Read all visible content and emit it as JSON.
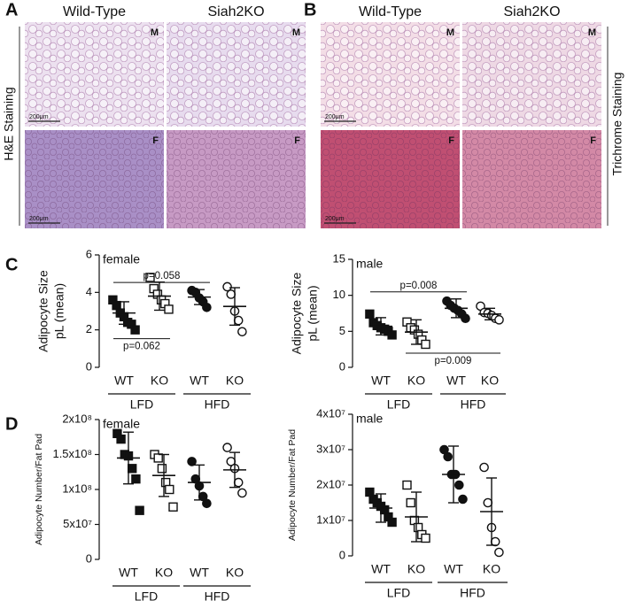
{
  "histology": [
    {
      "label": "A",
      "columns": [
        "Wild-Type",
        "Siah2KO"
      ],
      "rows": [
        "M",
        "F"
      ],
      "scale_bar": "200μm",
      "stain": "H&E Staining"
    },
    {
      "label": "B",
      "columns": [
        "Wild-Type",
        "Siah2KO"
      ],
      "rows": [
        "M",
        "F"
      ],
      "scale_bar": "200μm",
      "stain": "Trichrome Staining"
    }
  ],
  "chart_data": [
    {
      "type": "dotplot",
      "panel": "C",
      "title": "female",
      "ylabel": [
        "Adipocyte Size",
        "pL (mean)"
      ],
      "categories": [
        "WT",
        "KO",
        "WT",
        "KO"
      ],
      "groups": [
        "LFD",
        "HFD"
      ],
      "markers": [
        "square",
        "square",
        "circle",
        "circle"
      ],
      "filled": [
        true,
        false,
        true,
        false
      ],
      "points": [
        [
          3.6,
          3.3,
          2.9,
          2.7,
          2.4,
          2.3,
          2.0
        ],
        [
          4.8,
          4.2,
          3.9,
          3.6,
          3.4,
          3.1
        ],
        [
          4.1,
          4.0,
          3.7,
          3.5,
          3.2
        ],
        [
          4.3,
          3.9,
          3.0,
          2.5,
          1.9
        ]
      ],
      "means": [
        2.9,
        3.8,
        3.75,
        3.25
      ],
      "sd": [
        0.6,
        0.75,
        0.4,
        1.0
      ],
      "annotations": [
        {
          "text": "p=0.058",
          "from": 0,
          "to": 2,
          "side": "above"
        },
        {
          "text": "p=0.062",
          "from": 0,
          "to": 1,
          "side": "below"
        }
      ],
      "ylim": [
        0,
        6
      ],
      "yticks": [
        0,
        2,
        4,
        6
      ]
    },
    {
      "type": "dotplot",
      "panel": null,
      "title": "male",
      "ylabel": [
        "Adipocyte Size",
        "pL (mean)"
      ],
      "categories": [
        "WT",
        "KO",
        "WT",
        "KO"
      ],
      "groups": [
        "LFD",
        "HFD"
      ],
      "markers": [
        "square",
        "square",
        "circle",
        "circle"
      ],
      "filled": [
        true,
        false,
        true,
        false
      ],
      "points": [
        [
          7.4,
          6.2,
          5.8,
          5.5,
          5.3,
          5.0,
          4.5
        ],
        [
          6.3,
          5.5,
          5.2,
          4.6,
          3.8,
          3.2
        ],
        [
          9.2,
          8.6,
          8.2,
          7.9,
          7.4,
          6.8
        ],
        [
          8.5,
          7.6,
          7.5,
          7.2,
          6.8,
          6.6
        ]
      ],
      "means": [
        5.7,
        4.9,
        8.2,
        7.4
      ],
      "sd": [
        1.2,
        1.7,
        1.3,
        0.8
      ],
      "annotations": [
        {
          "text": "p=0.008",
          "from": 0,
          "to": 2,
          "side": "above"
        },
        {
          "text": "p=0.009",
          "from": 1,
          "to": 3,
          "side": "below"
        }
      ],
      "ylim": [
        0,
        15
      ],
      "yticks": [
        0,
        5,
        10,
        15
      ]
    },
    {
      "type": "dotplot",
      "panel": "D",
      "title": "female",
      "ylabel": [
        "Adipocyte Number/Fat Pad"
      ],
      "categories": [
        "WT",
        "KO",
        "WT",
        "KO"
      ],
      "groups": [
        "LFD",
        "HFD"
      ],
      "markers": [
        "square",
        "square",
        "circle",
        "circle"
      ],
      "filled": [
        true,
        false,
        true,
        false
      ],
      "points": [
        [
          180000000.0,
          172000000.0,
          150000000.0,
          148000000.0,
          130000000.0,
          115000000.0,
          70000000.0
        ],
        [
          150000000.0,
          145000000.0,
          130000000.0,
          110000000.0,
          100000000.0,
          75000000.0
        ],
        [
          140000000.0,
          115000000.0,
          105000000.0,
          90000000.0,
          80000000.0
        ],
        [
          160000000.0,
          140000000.0,
          130000000.0,
          110000000.0,
          95000000.0
        ]
      ],
      "means": [
        145000000.0,
        120000000.0,
        110000000.0,
        128000000.0
      ],
      "sd": [
        37000000.0,
        30000000.0,
        25000000.0,
        25000000.0
      ],
      "annotations": [],
      "ylim": [
        0,
        200000000.0
      ],
      "yticks": [
        0,
        {
          "value": 50000000.0,
          "label": "5x10⁷"
        },
        {
          "value": 100000000.0,
          "label": "1x10⁸"
        },
        {
          "value": 150000000.0,
          "label": "1.5x10⁸"
        },
        {
          "value": 200000000.0,
          "label": "2x10⁸"
        }
      ]
    },
    {
      "type": "dotplot",
      "panel": null,
      "title": "male",
      "ylabel": [
        "Adipocyte Number/Fat Pad"
      ],
      "categories": [
        "WT",
        "KO",
        "WT",
        "KO"
      ],
      "groups": [
        "LFD",
        "HFD"
      ],
      "markers": [
        "square",
        "square",
        "circle",
        "circle"
      ],
      "filled": [
        true,
        false,
        true,
        false
      ],
      "points": [
        [
          18000000.0,
          16000000.0,
          15000000.0,
          14000000.0,
          13000000.0,
          11000000.0,
          9500000.0
        ],
        [
          20000000.0,
          15000000.0,
          10000000.0,
          8000000.0,
          6000000.0,
          5000000.0
        ],
        [
          30000000.0,
          28000000.0,
          23000000.0,
          23000000.0,
          20000000.0,
          16000000.0
        ],
        [
          25000000.0,
          15000000.0,
          8000000.0,
          4000000.0,
          1000000.0
        ]
      ],
      "means": [
        13500000.0,
        11000000.0,
        23000000.0,
        12500000.0
      ],
      "sd": [
        4000000.0,
        7000000.0,
        8000000.0,
        9500000.0
      ],
      "annotations": [],
      "ylim": [
        0,
        40000000.0
      ],
      "yticks": [
        0,
        {
          "value": 10000000.0,
          "label": "1x10⁷"
        },
        {
          "value": 20000000.0,
          "label": "2x10⁷"
        },
        {
          "value": 30000000.0,
          "label": "3x10⁷"
        },
        {
          "value": 40000000.0,
          "label": "4x10⁷"
        }
      ]
    }
  ]
}
